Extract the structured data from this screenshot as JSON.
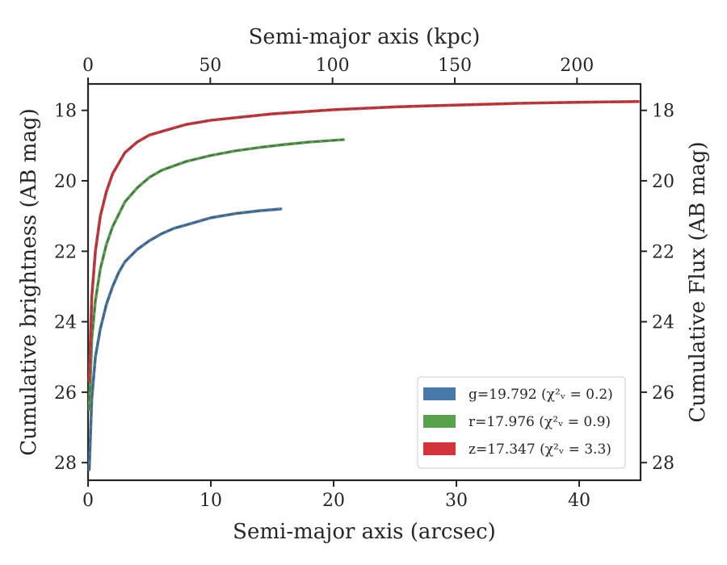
{
  "chart_data": {
    "type": "line",
    "xlabel": "Semi-major axis (arcsec)",
    "xlabel_top": "Semi-major axis (kpc)",
    "ylabel": "Cumulative brightness (AB mag)",
    "ylabel_right": "Cumulative Flux (AB mag)",
    "xlim": [
      0,
      45
    ],
    "xlim_top": [
      0,
      226
    ],
    "ylim": [
      28.5,
      17.25
    ],
    "yaxis_inverted": true,
    "x_ticks": [
      "0",
      "10",
      "20",
      "30",
      "40"
    ],
    "x_top_ticks": [
      "0",
      "50",
      "100",
      "150",
      "200"
    ],
    "y_ticks": [
      "18",
      "20",
      "22",
      "24",
      "26",
      "28"
    ],
    "grid": false,
    "legend_position": "lower-right",
    "series": [
      {
        "name": "g=19.792",
        "chi2": "(χ²ᵥ = 0.2)",
        "color": "#4878a8",
        "x": [
          0.1,
          0.3,
          0.6,
          1,
          1.5,
          2,
          2.5,
          3,
          4,
          5,
          6,
          7,
          8,
          10,
          12,
          14,
          15.7
        ],
        "y": [
          28.2,
          26.2,
          25.0,
          24.2,
          23.5,
          23.0,
          22.6,
          22.3,
          21.95,
          21.7,
          21.5,
          21.35,
          21.25,
          21.05,
          20.93,
          20.85,
          20.8
        ]
      },
      {
        "name": "r=17.976",
        "chi2": "(χ²ᵥ = 0.9)",
        "color": "#59a14f",
        "x": [
          0.1,
          0.3,
          0.6,
          1,
          1.5,
          2,
          3,
          4,
          5,
          6,
          8,
          10,
          12,
          14,
          16,
          18,
          20.8
        ],
        "y": [
          26.5,
          24.5,
          23.4,
          22.5,
          21.8,
          21.3,
          20.6,
          20.2,
          19.9,
          19.7,
          19.45,
          19.28,
          19.15,
          19.05,
          18.97,
          18.9,
          18.83
        ]
      },
      {
        "name": "z=17.347",
        "chi2": "(χ²ᵥ = 3.3)",
        "color": "#d1343a",
        "x": [
          0.1,
          0.3,
          0.6,
          1,
          1.5,
          2,
          3,
          4,
          5,
          6,
          8,
          10,
          15,
          20,
          25,
          30,
          35,
          40,
          44.8
        ],
        "y": [
          25.7,
          23.3,
          22.0,
          21.0,
          20.3,
          19.8,
          19.2,
          18.9,
          18.7,
          18.6,
          18.4,
          18.28,
          18.1,
          17.98,
          17.9,
          17.85,
          17.8,
          17.77,
          17.75
        ]
      }
    ]
  }
}
